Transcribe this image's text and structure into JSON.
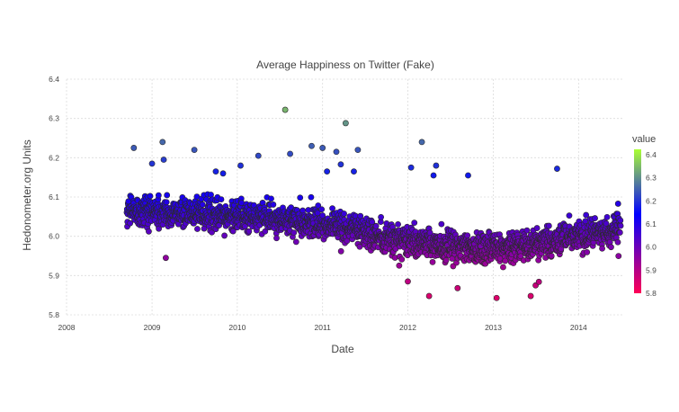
{
  "chart_data": {
    "type": "scatter",
    "title": "Average Happiness on Twitter (Fake)",
    "xlabel": "Date",
    "ylabel": "Hedonometer.org Units",
    "xlim": [
      "2008-01-01",
      "2014-07-15"
    ],
    "ylim": [
      5.8,
      6.4
    ],
    "x_tick_labels": [
      "2008",
      "2009",
      "2010",
      "2011",
      "2012",
      "2013",
      "2014"
    ],
    "y_tick_labels": [
      "5.8",
      "5.9",
      "6.0",
      "6.1",
      "6.2",
      "6.3",
      "6.4"
    ],
    "grid": true,
    "legend": {
      "title": "value",
      "placement": "right",
      "range": [
        5.8,
        6.4
      ],
      "labels": [
        "6.4",
        "6.3",
        "6.2",
        "6.1",
        "6.0",
        "5.9",
        "5.8"
      ],
      "colors": [
        "#ff0055",
        "#0000ff",
        "#aaff33"
      ]
    },
    "trend": {
      "description_dates": [
        "2008-09-15",
        "2009-06-01",
        "2010-06-01",
        "2011-03-01",
        "2011-09-01",
        "2012-06-01",
        "2013-01-01",
        "2013-09-01",
        "2014-06-30"
      ],
      "description_values": [
        6.065,
        6.06,
        6.045,
        6.03,
        6.0,
        5.975,
        5.97,
        5.985,
        6.02
      ]
    },
    "outliers": [
      {
        "x": "2008-10-15",
        "y": 6.225
      },
      {
        "x": "2009-01-01",
        "y": 6.185
      },
      {
        "x": "2009-02-15",
        "y": 6.24
      },
      {
        "x": "2009-02-20",
        "y": 6.195
      },
      {
        "x": "2009-07-01",
        "y": 6.22
      },
      {
        "x": "2009-10-01",
        "y": 6.165
      },
      {
        "x": "2009-11-01",
        "y": 6.16
      },
      {
        "x": "2010-01-15",
        "y": 6.18
      },
      {
        "x": "2010-04-01",
        "y": 6.205
      },
      {
        "x": "2010-07-25",
        "y": 6.322
      },
      {
        "x": "2010-08-15",
        "y": 6.21
      },
      {
        "x": "2010-11-15",
        "y": 6.23
      },
      {
        "x": "2011-01-01",
        "y": 6.225
      },
      {
        "x": "2011-01-20",
        "y": 6.165
      },
      {
        "x": "2011-03-01",
        "y": 6.215
      },
      {
        "x": "2011-03-20",
        "y": 6.183
      },
      {
        "x": "2011-04-10",
        "y": 6.288
      },
      {
        "x": "2011-05-15",
        "y": 6.165
      },
      {
        "x": "2011-06-01",
        "y": 6.22
      },
      {
        "x": "2012-01-15",
        "y": 6.175
      },
      {
        "x": "2012-03-01",
        "y": 6.24
      },
      {
        "x": "2012-04-20",
        "y": 6.155
      },
      {
        "x": "2012-05-01",
        "y": 6.18
      },
      {
        "x": "2012-09-15",
        "y": 6.155
      },
      {
        "x": "2013-10-01",
        "y": 6.172
      },
      {
        "x": "2009-03-01",
        "y": 5.945
      },
      {
        "x": "2012-04-01",
        "y": 5.848
      },
      {
        "x": "2012-08-01",
        "y": 5.868
      },
      {
        "x": "2013-01-15",
        "y": 5.843
      },
      {
        "x": "2013-06-10",
        "y": 5.848
      },
      {
        "x": "2013-07-01",
        "y": 5.875
      },
      {
        "x": "2013-07-15",
        "y": 5.884
      },
      {
        "x": "2012-01-01",
        "y": 5.885
      }
    ]
  }
}
